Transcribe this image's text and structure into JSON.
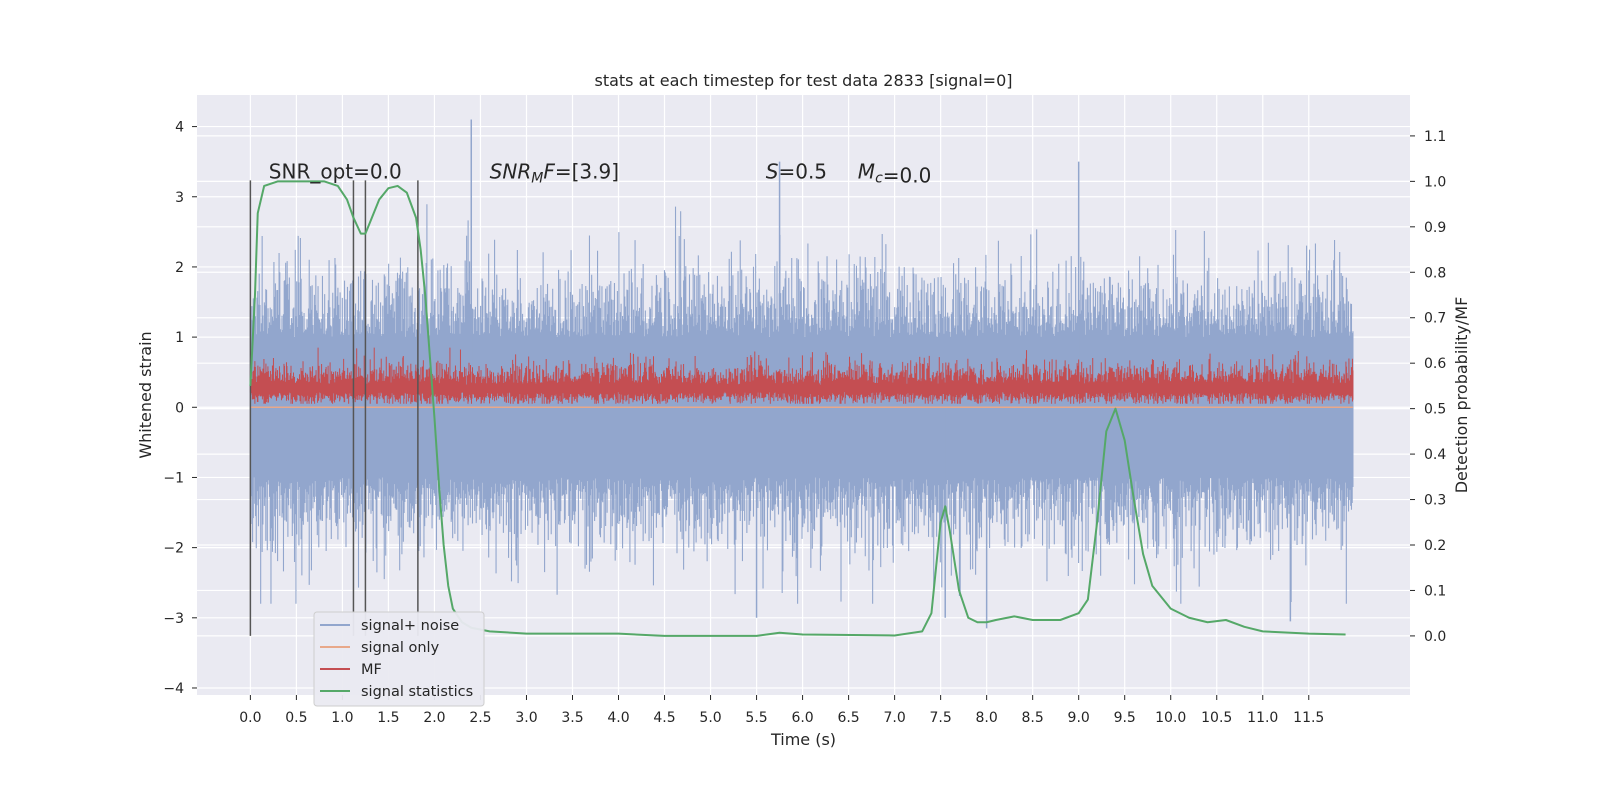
{
  "chart_data": {
    "type": "line",
    "title": "stats at each timestep for test data 2833 [signal=0]",
    "xlabel": "Time (s)",
    "ylabel": "Whitened strain",
    "y2label": "Detection probability/MF",
    "xlim": [
      -0.58,
      12.6
    ],
    "ylim": [
      -4.1,
      4.45
    ],
    "y2lim": [
      -0.13,
      1.19
    ],
    "x_ticks": [
      0.0,
      0.5,
      1.0,
      1.5,
      2.0,
      2.5,
      3.0,
      3.5,
      4.0,
      4.5,
      5.0,
      5.5,
      6.0,
      6.5,
      7.0,
      7.5,
      8.0,
      8.5,
      9.0,
      9.5,
      10.0,
      10.5,
      11.0,
      11.5
    ],
    "x_tick_labels": [
      "0.0",
      "0.5",
      "1.0",
      "1.5",
      "2.0",
      "2.5",
      "3.0",
      "3.5",
      "4.0",
      "4.5",
      "5.0",
      "5.5",
      "6.0",
      "6.5",
      "7.0",
      "7.5",
      "8.0",
      "8.5",
      "9.0",
      "9.5",
      "10.0",
      "10.5",
      "11.0",
      "11.5"
    ],
    "y_ticks": [
      4,
      3,
      2,
      1,
      0,
      -1,
      -2,
      -3,
      -4
    ],
    "y_tick_labels": [
      "4",
      "3",
      "2",
      "1",
      "0",
      "−1",
      "−2",
      "−3",
      "−4"
    ],
    "y2_ticks": [
      1.1,
      1.0,
      0.9,
      0.8,
      0.7,
      0.6,
      0.5,
      0.4,
      0.3,
      0.2,
      0.1,
      0.0
    ],
    "y2_tick_labels": [
      "1.1",
      "1.0",
      "0.9",
      "0.8",
      "0.7",
      "0.6",
      "0.5",
      "0.4",
      "0.3",
      "0.2",
      "0.1",
      "0.0"
    ],
    "grid": true,
    "legend_position": "lower-left",
    "series": [
      {
        "name": "signal+ noise",
        "color": "#92a6cd",
        "axis": "left",
        "x_range": [
          0.0,
          11.98
        ],
        "band_core": [
          -1.0,
          1.0
        ],
        "envelope_max": [
          4.1,
          3.5
        ],
        "envelope_min": [
          -3.1,
          -3.0
        ],
        "notable_peaks": [
          [
            2.4,
            4.1
          ],
          [
            5.75,
            3.5
          ],
          [
            9.0,
            3.5
          ],
          [
            8.0,
            -3.15
          ],
          [
            11.3,
            -3.05
          ],
          [
            5.5,
            -3.0
          ],
          [
            7.55,
            -3.0
          ]
        ]
      },
      {
        "name": "signal only",
        "color": "#e8a88a",
        "axis": "left",
        "x": [
          0.0,
          11.98
        ],
        "y": [
          0.0,
          0.0
        ]
      },
      {
        "name": "MF",
        "color": "#c44e52",
        "axis": "left",
        "x_range": [
          0.0,
          11.98
        ],
        "band": [
          0.05,
          0.55
        ],
        "peak_max": 0.85
      },
      {
        "name": "signal statistics",
        "color": "#55a868",
        "axis": "right",
        "x": [
          0.0,
          0.05,
          0.08,
          0.15,
          0.3,
          0.5,
          0.8,
          0.95,
          1.05,
          1.12,
          1.2,
          1.25,
          1.32,
          1.4,
          1.5,
          1.6,
          1.7,
          1.8,
          1.85,
          1.9,
          2.0,
          2.05,
          2.1,
          2.15,
          2.2,
          2.3,
          2.4,
          2.6,
          3.0,
          4.0,
          4.5,
          5.0,
          5.5,
          5.75,
          6.0,
          7.0,
          7.3,
          7.4,
          7.45,
          7.5,
          7.55,
          7.6,
          7.7,
          7.8,
          7.9,
          8.0,
          8.1,
          8.3,
          8.5,
          8.8,
          9.0,
          9.1,
          9.2,
          9.3,
          9.4,
          9.5,
          9.6,
          9.7,
          9.8,
          10.0,
          10.2,
          10.4,
          10.6,
          10.8,
          11.0,
          11.5,
          11.9
        ],
        "y": [
          0.55,
          0.75,
          0.93,
          0.99,
          1.0,
          1.0,
          1.0,
          0.99,
          0.96,
          0.92,
          0.885,
          0.885,
          0.92,
          0.96,
          0.985,
          0.99,
          0.975,
          0.92,
          0.85,
          0.75,
          0.48,
          0.33,
          0.2,
          0.11,
          0.06,
          0.03,
          0.018,
          0.01,
          0.005,
          0.005,
          0.0,
          0.0,
          0.0,
          0.007,
          0.003,
          0.001,
          0.01,
          0.05,
          0.15,
          0.25,
          0.285,
          0.23,
          0.1,
          0.04,
          0.03,
          0.03,
          0.035,
          0.043,
          0.035,
          0.035,
          0.05,
          0.08,
          0.25,
          0.45,
          0.5,
          0.43,
          0.3,
          0.18,
          0.11,
          0.06,
          0.04,
          0.03,
          0.035,
          0.02,
          0.01,
          0.005,
          0.003
        ]
      }
    ],
    "vertical_lines": [
      0.0,
      1.12,
      1.25,
      1.82
    ],
    "annotations": [
      {
        "text": "SNR_opt=0.0",
        "x": 0.2,
        "y": 3.2
      },
      {
        "text": "SNR_MF=[3.9]",
        "x": 2.6,
        "y": 3.2
      },
      {
        "text": "S=0.5",
        "x": 5.6,
        "y": 3.2
      },
      {
        "text": "M_c=0.0",
        "x": 6.6,
        "y": 3.2
      }
    ]
  }
}
